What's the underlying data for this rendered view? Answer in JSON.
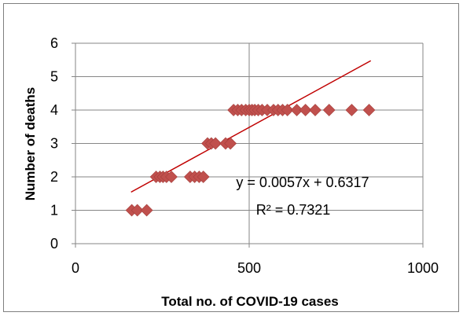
{
  "chart_data": {
    "type": "scatter",
    "title": "",
    "xlabel": "Total no. of COVID-19 cases",
    "ylabel": "Number of deaths",
    "xlim": [
      0,
      1000
    ],
    "ylim": [
      0,
      6
    ],
    "x_ticks": [
      "0",
      "500",
      "1000"
    ],
    "y_ticks": [
      "0",
      "1",
      "2",
      "3",
      "4",
      "5",
      "6"
    ],
    "grid": "major gridlines",
    "legend": "none",
    "marker": "diamond",
    "marker_color": "#C0504D",
    "trendline_color": "#C00000",
    "series": [
      {
        "points": [
          [
            162,
            1
          ],
          [
            178,
            1
          ],
          [
            205,
            1
          ],
          [
            232,
            2
          ],
          [
            243,
            2
          ],
          [
            252,
            2
          ],
          [
            262,
            2
          ],
          [
            276,
            2
          ],
          [
            330,
            2
          ],
          [
            343,
            2
          ],
          [
            356,
            2
          ],
          [
            368,
            2
          ],
          [
            380,
            3
          ],
          [
            391,
            3
          ],
          [
            403,
            3
          ],
          [
            432,
            3
          ],
          [
            446,
            3
          ],
          [
            455,
            4
          ],
          [
            467,
            4
          ],
          [
            478,
            4
          ],
          [
            490,
            4
          ],
          [
            500,
            4
          ],
          [
            508,
            4
          ],
          [
            516,
            4
          ],
          [
            526,
            4
          ],
          [
            537,
            4
          ],
          [
            552,
            4
          ],
          [
            570,
            4
          ],
          [
            583,
            4
          ],
          [
            596,
            4
          ],
          [
            610,
            4
          ],
          [
            637,
            4
          ],
          [
            662,
            4
          ],
          [
            690,
            4
          ],
          [
            730,
            4
          ],
          [
            795,
            4
          ],
          [
            845,
            4
          ]
        ]
      }
    ],
    "trendline": {
      "slope": 0.0057,
      "intercept": 0.6317,
      "x_range": [
        160,
        850
      ],
      "equation": "y = 0.0057x + 0.6317",
      "r_squared": "R² = 0.7321"
    }
  }
}
